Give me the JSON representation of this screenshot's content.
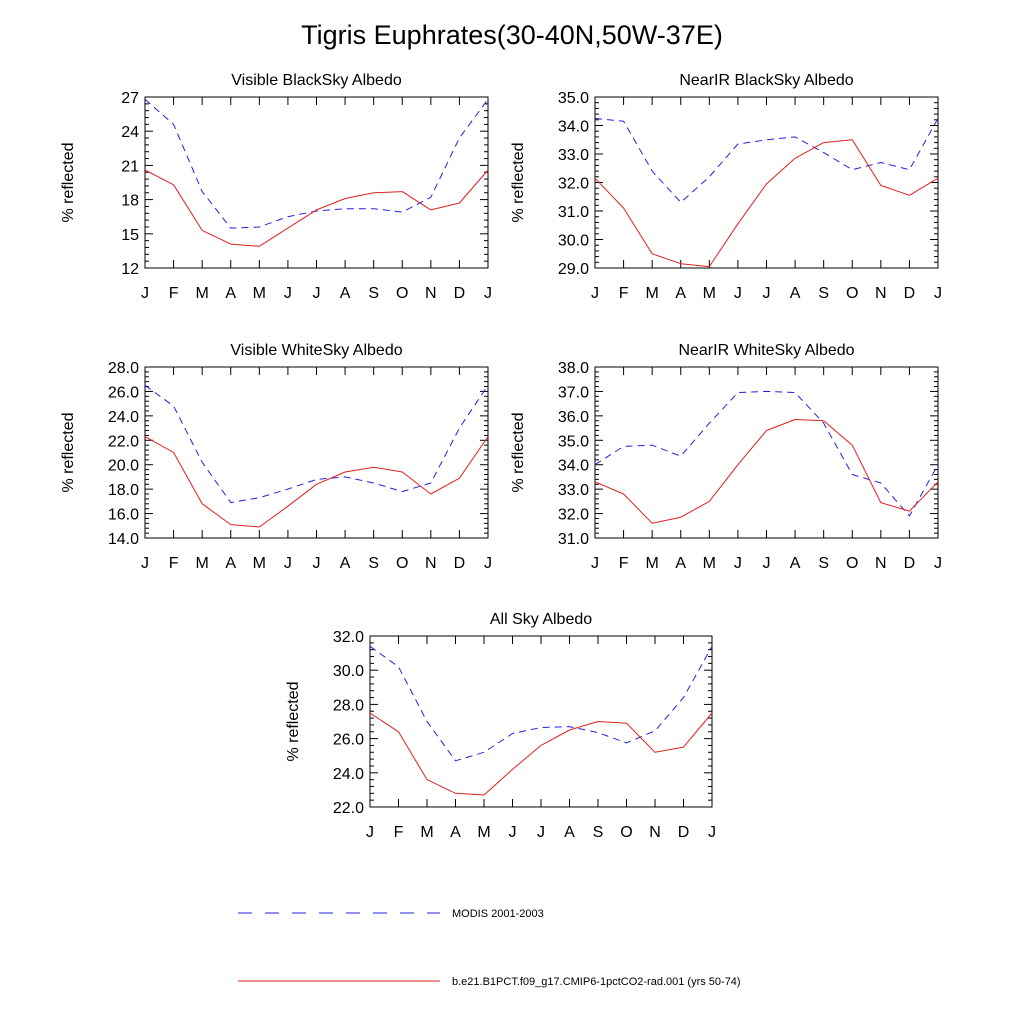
{
  "title": "Tigris Euphrates(30-40N,50W-37E)",
  "months": [
    "J",
    "F",
    "M",
    "A",
    "M",
    "J",
    "J",
    "A",
    "S",
    "O",
    "N",
    "D",
    "J"
  ],
  "legend": {
    "series_a_label": "MODIS 2001-2003",
    "series_b_label": "b.e21.B1PCT.f09_g17.CMIP6-1pctCO2-rad.001 (yrs 50-74)"
  },
  "colors": {
    "modis": "#2222dd",
    "model": "#e02020",
    "axis": "#000000"
  },
  "chart_data": [
    {
      "type": "line",
      "title": "Visible BlackSky Albedo",
      "ylabel": "% reflected",
      "categories": [
        "J",
        "F",
        "M",
        "A",
        "M",
        "J",
        "J",
        "A",
        "S",
        "O",
        "N",
        "D",
        "J"
      ],
      "ylim": [
        12,
        27
      ],
      "yticks": [
        12,
        15,
        18,
        21,
        24,
        27
      ],
      "ytick_labels": [
        "12",
        "15",
        "18",
        "21",
        "24",
        "27"
      ],
      "series": [
        {
          "name": "MODIS 2001-2003",
          "values": [
            26.8,
            24.6,
            18.7,
            15.5,
            15.6,
            16.5,
            17.0,
            17.2,
            17.2,
            16.9,
            18.2,
            23.4,
            26.8
          ]
        },
        {
          "name": "b.e21.B1PCT.f09_g17.CMIP6-1pctCO2-rad.001 (yrs 50-74)",
          "values": [
            20.6,
            19.3,
            15.3,
            14.1,
            13.9,
            15.5,
            17.1,
            18.1,
            18.6,
            18.7,
            17.1,
            17.7,
            20.6
          ]
        }
      ]
    },
    {
      "type": "line",
      "title": "NearIR BlackSky Albedo",
      "ylabel": "% reflected",
      "categories": [
        "J",
        "F",
        "M",
        "A",
        "M",
        "J",
        "J",
        "A",
        "S",
        "O",
        "N",
        "D",
        "J"
      ],
      "ylim": [
        29,
        35
      ],
      "yticks": [
        29,
        30,
        31,
        32,
        33,
        34,
        35
      ],
      "ytick_labels": [
        "29.0",
        "30.0",
        "31.0",
        "32.0",
        "33.0",
        "34.0",
        "35.0"
      ],
      "series": [
        {
          "name": "MODIS 2001-2003",
          "values": [
            34.25,
            34.15,
            32.4,
            31.3,
            32.2,
            33.35,
            33.5,
            33.6,
            33.05,
            32.45,
            32.7,
            32.45,
            34.25
          ]
        },
        {
          "name": "b.e21.B1PCT.f09_g17.CMIP6-1pctCO2-rad.001 (yrs 50-74)",
          "values": [
            32.15,
            31.1,
            29.5,
            29.15,
            29.05,
            30.55,
            31.95,
            32.85,
            33.4,
            33.5,
            31.9,
            31.55,
            32.15
          ]
        }
      ]
    },
    {
      "type": "line",
      "title": "Visible WhiteSky Albedo",
      "ylabel": "% reflected",
      "categories": [
        "J",
        "F",
        "M",
        "A",
        "M",
        "J",
        "J",
        "A",
        "S",
        "O",
        "N",
        "D",
        "J"
      ],
      "ylim": [
        14,
        28
      ],
      "yticks": [
        14,
        16,
        18,
        20,
        22,
        24,
        26,
        28
      ],
      "ytick_labels": [
        "14.0",
        "16.0",
        "18.0",
        "20.0",
        "22.0",
        "24.0",
        "26.0",
        "28.0"
      ],
      "series": [
        {
          "name": "MODIS 2001-2003",
          "values": [
            26.5,
            24.8,
            20.2,
            16.9,
            17.3,
            18.0,
            18.8,
            19.0,
            18.5,
            17.8,
            18.5,
            23.0,
            26.5
          ]
        },
        {
          "name": "b.e21.B1PCT.f09_g17.CMIP6-1pctCO2-rad.001 (yrs 50-74)",
          "values": [
            22.3,
            21.0,
            16.8,
            15.1,
            14.9,
            16.6,
            18.4,
            19.4,
            19.8,
            19.4,
            17.6,
            18.9,
            22.3
          ]
        }
      ]
    },
    {
      "type": "line",
      "title": "NearIR WhiteSky Albedo",
      "ylabel": "% reflected",
      "categories": [
        "J",
        "F",
        "M",
        "A",
        "M",
        "J",
        "J",
        "A",
        "S",
        "O",
        "N",
        "D",
        "J"
      ],
      "ylim": [
        31,
        38
      ],
      "yticks": [
        31,
        32,
        33,
        34,
        35,
        36,
        37,
        38
      ],
      "ytick_labels": [
        "31.0",
        "32.0",
        "33.0",
        "34.0",
        "35.0",
        "36.0",
        "37.0",
        "38.0"
      ],
      "series": [
        {
          "name": "MODIS 2001-2003",
          "values": [
            34.0,
            34.75,
            34.8,
            34.35,
            35.7,
            36.95,
            37.0,
            36.95,
            35.7,
            33.6,
            33.25,
            31.9,
            34.0
          ]
        },
        {
          "name": "b.e21.B1PCT.f09_g17.CMIP6-1pctCO2-rad.001 (yrs 50-74)",
          "values": [
            33.3,
            32.8,
            31.6,
            31.85,
            32.5,
            34.0,
            35.4,
            35.85,
            35.8,
            34.8,
            32.45,
            32.1,
            33.3
          ]
        }
      ]
    },
    {
      "type": "line",
      "title": "All Sky Albedo",
      "ylabel": "% reflected",
      "categories": [
        "J",
        "F",
        "M",
        "A",
        "M",
        "J",
        "J",
        "A",
        "S",
        "O",
        "N",
        "D",
        "J"
      ],
      "ylim": [
        22,
        32
      ],
      "yticks": [
        22,
        24,
        26,
        28,
        30,
        32
      ],
      "ytick_labels": [
        "22.0",
        "24.0",
        "26.0",
        "28.0",
        "30.0",
        "32.0"
      ],
      "series": [
        {
          "name": "MODIS 2001-2003",
          "values": [
            31.4,
            30.2,
            27.0,
            24.7,
            25.2,
            26.3,
            26.65,
            26.7,
            26.35,
            25.75,
            26.45,
            28.4,
            31.4
          ]
        },
        {
          "name": "b.e21.B1PCT.f09_g17.CMIP6-1pctCO2-rad.001 (yrs 50-74)",
          "values": [
            27.5,
            26.4,
            23.6,
            22.8,
            22.7,
            24.2,
            25.6,
            26.5,
            27.0,
            26.9,
            25.2,
            25.5,
            27.5
          ]
        }
      ]
    }
  ]
}
